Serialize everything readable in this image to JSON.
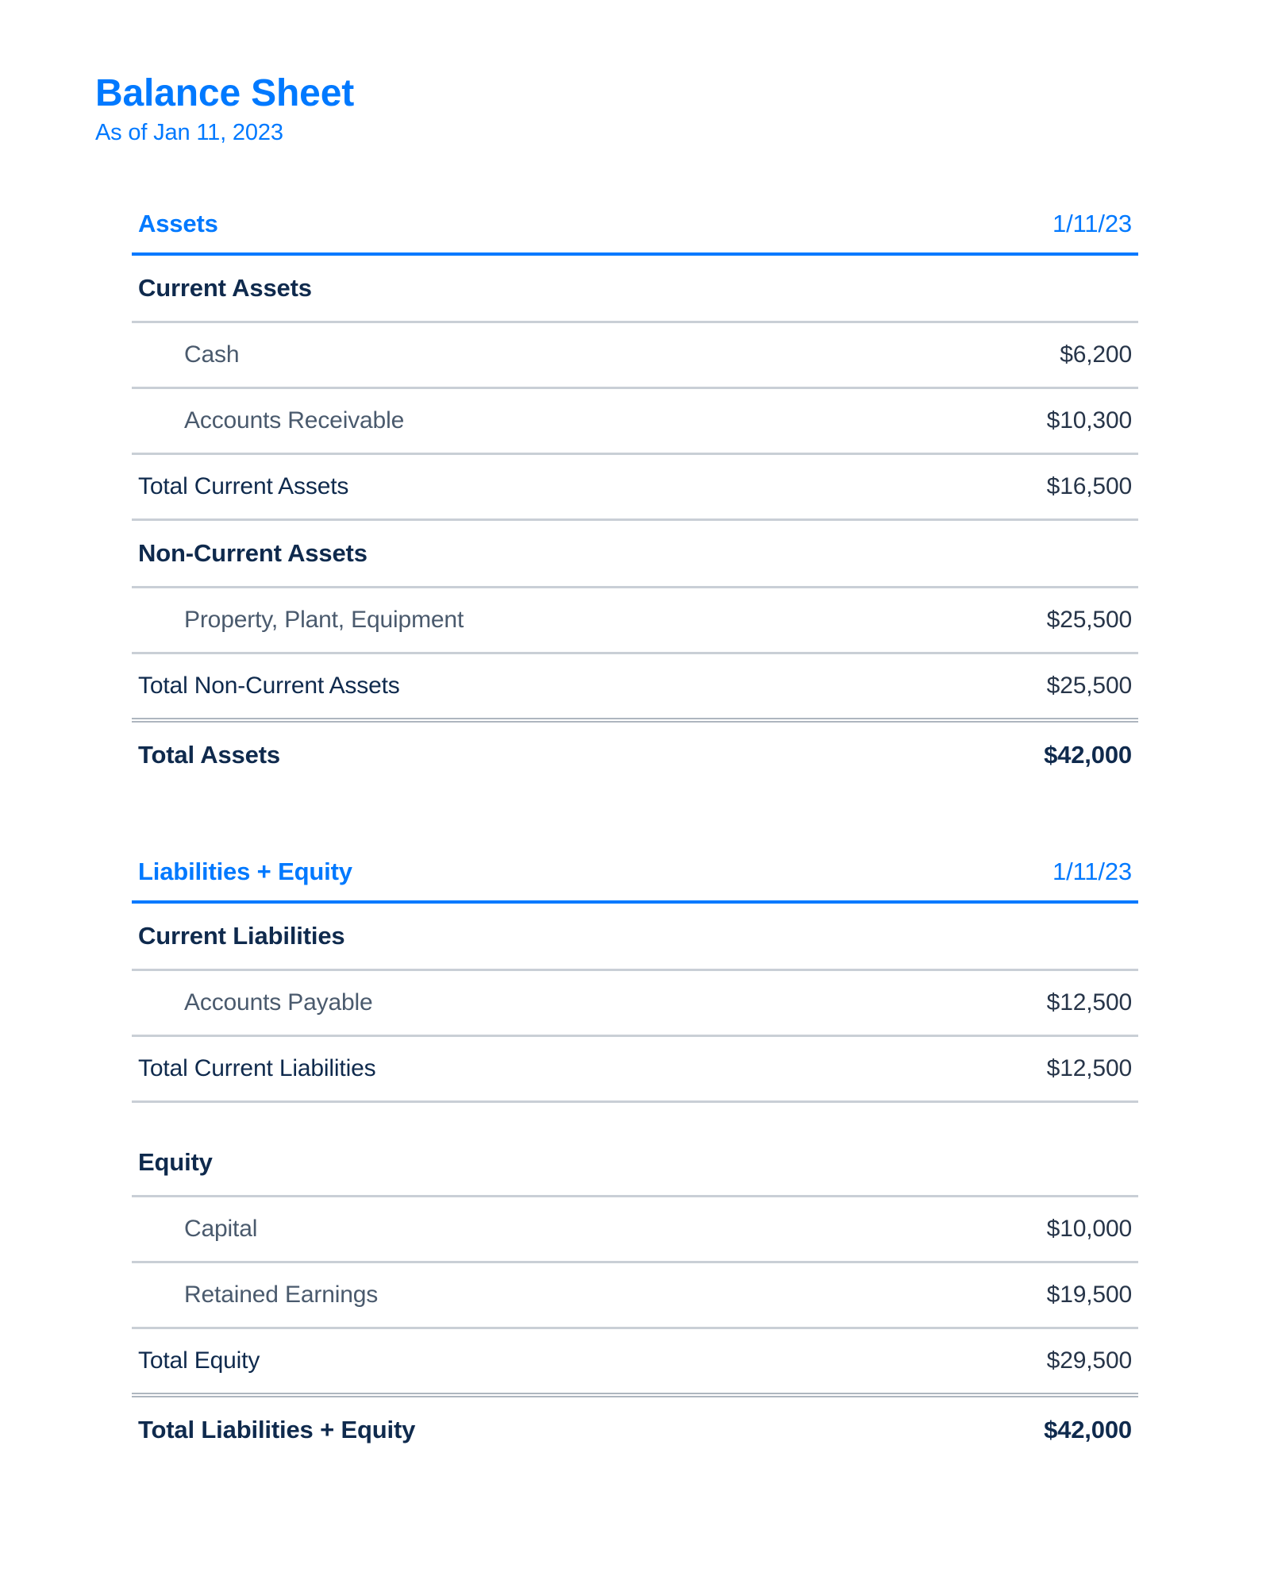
{
  "header": {
    "title": "Balance Sheet",
    "as_of": "As of Jan 11, 2023"
  },
  "colors": {
    "accent": "#0079ff",
    "dark_text": "#0f2a4d",
    "muted_text": "#4a5a6d",
    "value_text": "#273549",
    "rule_light": "#c9cfd6",
    "rule_double": "#aeb6bf"
  },
  "assets": {
    "header": {
      "label": "Assets",
      "date": "1/11/23"
    },
    "current": {
      "header": "Current Assets",
      "items": [
        {
          "label": "Cash",
          "value": "$6,200"
        },
        {
          "label": "Accounts Receivable",
          "value": "$10,300"
        }
      ],
      "total": {
        "label": "Total Current Assets",
        "value": "$16,500"
      }
    },
    "noncurrent": {
      "header": "Non-Current Assets",
      "items": [
        {
          "label": "Property, Plant, Equipment",
          "value": "$25,500"
        }
      ],
      "total": {
        "label": "Total Non-Current Assets",
        "value": "$25,500"
      }
    },
    "grand_total": {
      "label": "Total Assets",
      "value": "$42,000"
    }
  },
  "liabilities_equity": {
    "header": {
      "label": "Liabilities + Equity",
      "date": "1/11/23"
    },
    "current_liabilities": {
      "header": "Current Liabilities",
      "items": [
        {
          "label": "Accounts Payable",
          "value": "$12,500"
        }
      ],
      "total": {
        "label": "Total Current Liabilities",
        "value": "$12,500"
      }
    },
    "equity": {
      "header": "Equity",
      "items": [
        {
          "label": "Capital",
          "value": "$10,000"
        },
        {
          "label": "Retained Earnings",
          "value": "$19,500"
        }
      ],
      "total": {
        "label": "Total Equity",
        "value": "$29,500"
      }
    },
    "grand_total": {
      "label": "Total Liabilities + Equity",
      "value": "$42,000"
    }
  }
}
